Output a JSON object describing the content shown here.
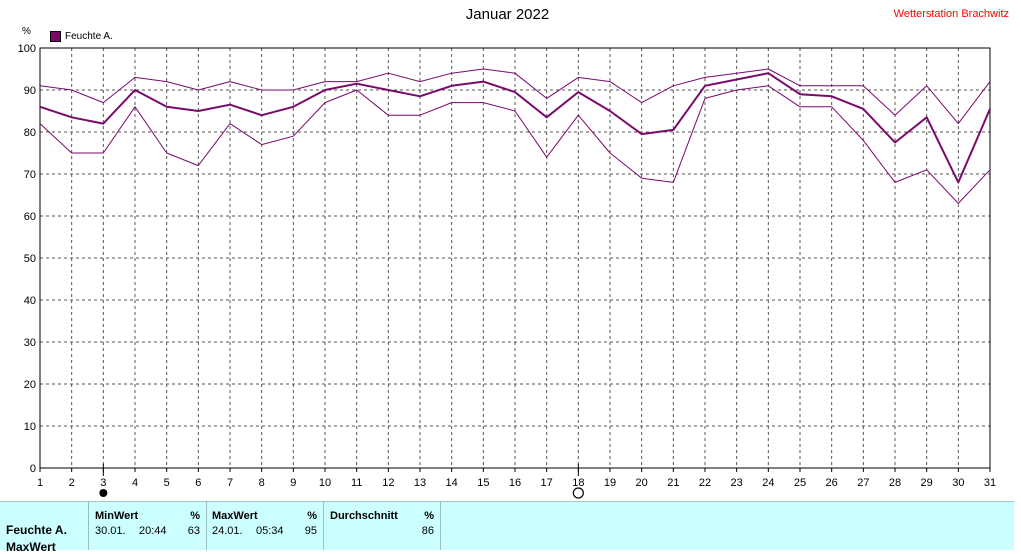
{
  "header": {
    "title": "Januar 2022",
    "station": "Wetterstation Brachwitz",
    "unit": "%"
  },
  "legend": {
    "label": "Feuchte A.",
    "color": "#7a0a6a"
  },
  "chart_data": {
    "type": "line",
    "title": "Januar 2022",
    "ylabel": "%",
    "ylim": [
      0,
      100
    ],
    "yticks": [
      0,
      10,
      20,
      30,
      40,
      50,
      60,
      70,
      80,
      90,
      100
    ],
    "x": [
      1,
      2,
      3,
      4,
      5,
      6,
      7,
      8,
      9,
      10,
      11,
      12,
      13,
      14,
      15,
      16,
      17,
      18,
      19,
      20,
      21,
      22,
      23,
      24,
      25,
      26,
      27,
      28,
      29,
      30,
      31
    ],
    "grid": true,
    "legend_position": "top-left",
    "series": [
      {
        "name": "Feuchte A.",
        "role": "mean",
        "color": "#7a0a6a",
        "values": [
          86,
          83.5,
          82,
          90,
          86,
          85,
          86.5,
          84,
          86,
          90,
          91.5,
          90,
          88.5,
          91,
          92,
          89.5,
          83.5,
          89.5,
          85,
          79.5,
          80.5,
          91,
          92.5,
          94,
          89,
          88.5,
          85.5,
          77.5,
          83.5,
          68,
          85.5
        ]
      },
      {
        "role": "max",
        "color": "#7a0a6a",
        "values": [
          91,
          90,
          87,
          93,
          92,
          90,
          92,
          90,
          90,
          92,
          92,
          94,
          92,
          94,
          95,
          94,
          88,
          93,
          92,
          87,
          91,
          93,
          94,
          95,
          91,
          91,
          91,
          84,
          91,
          82,
          92
        ]
      },
      {
        "role": "min",
        "color": "#7a0a6a",
        "values": [
          82,
          75,
          75,
          86,
          75,
          72,
          82,
          77,
          79,
          87,
          90,
          84,
          84,
          87,
          87,
          85,
          74,
          84,
          75,
          69,
          68,
          88,
          90,
          91,
          86,
          86,
          78,
          68,
          71,
          63,
          71
        ]
      }
    ],
    "markers": [
      {
        "x": 3,
        "type": "min",
        "symbol": "filled-circle"
      },
      {
        "x": 18,
        "type": "max",
        "symbol": "open-circle"
      }
    ]
  },
  "footer": {
    "row_label": "Feuchte A.",
    "row_label2": "MaxWert",
    "min": {
      "header": "MinWert",
      "unit": "%",
      "date": "30.01.",
      "time": "20:44",
      "value": "63"
    },
    "max": {
      "header": "MaxWert",
      "unit": "%",
      "date": "24.01.",
      "time": "05:34",
      "value": "95"
    },
    "avg": {
      "header": "Durchschnitt",
      "unit": "%",
      "value": "86"
    }
  }
}
